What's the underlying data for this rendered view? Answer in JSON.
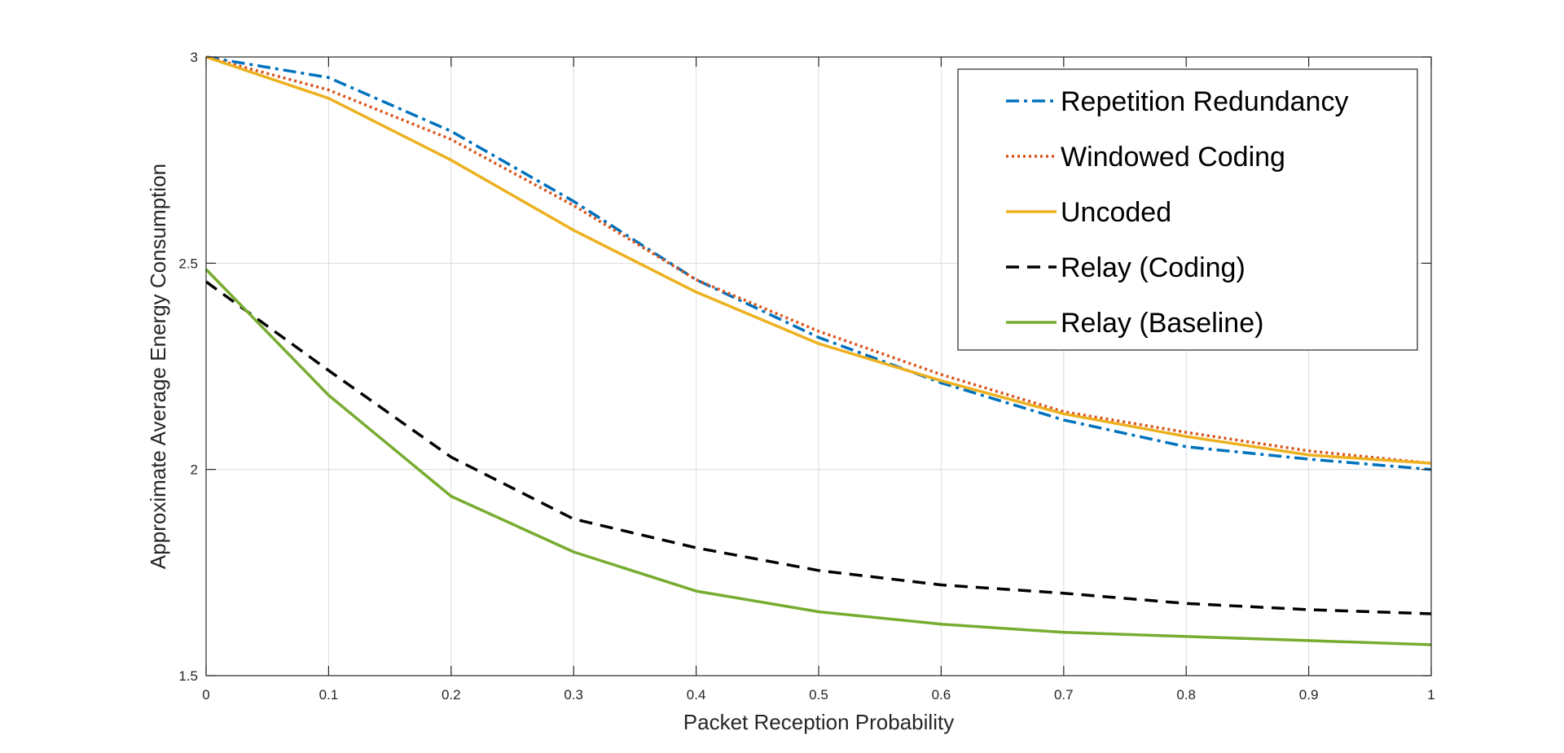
{
  "chart_data": {
    "type": "line",
    "title": "",
    "xlabel": "Packet Reception Probability",
    "ylabel": "Approximate Average Energy Consumption",
    "xlim": [
      0,
      1
    ],
    "ylim": [
      1.5,
      3
    ],
    "x_ticks": [
      "0",
      "0.1",
      "0.2",
      "0.3",
      "0.4",
      "0.5",
      "0.6",
      "0.7",
      "0.8",
      "0.9",
      "1"
    ],
    "y_ticks": [
      "1.5",
      "2",
      "2.5",
      "3"
    ],
    "grid": true,
    "legend_position": "top-right",
    "x": [
      0,
      0.1,
      0.2,
      0.3,
      0.4,
      0.5,
      0.6,
      0.7,
      0.8,
      0.9,
      1
    ],
    "series": [
      {
        "name": "Repetition Redundancy",
        "color": "#0072BD",
        "style": "dash-dot",
        "values": [
          3.0,
          2.95,
          2.82,
          2.65,
          2.46,
          2.32,
          2.21,
          2.12,
          2.055,
          2.025,
          2.0
        ]
      },
      {
        "name": "Windowed Coding",
        "color": "#D95319",
        "style": "dotted",
        "values": [
          3.0,
          2.92,
          2.8,
          2.64,
          2.46,
          2.335,
          2.23,
          2.14,
          2.09,
          2.045,
          2.015
        ]
      },
      {
        "name": "Uncoded",
        "color": "#EDB120",
        "style": "solid",
        "values": [
          3.0,
          2.9,
          2.75,
          2.58,
          2.43,
          2.305,
          2.215,
          2.135,
          2.08,
          2.035,
          2.015
        ]
      },
      {
        "name": "Relay (Coding)",
        "color": "#000000",
        "style": "dashed",
        "values": [
          2.455,
          2.24,
          2.03,
          1.88,
          1.81,
          1.755,
          1.72,
          1.7,
          1.675,
          1.66,
          1.65
        ]
      },
      {
        "name": "Relay (Baseline)",
        "color": "#77AC30",
        "style": "solid",
        "values": [
          2.485,
          2.18,
          1.935,
          1.8,
          1.705,
          1.655,
          1.625,
          1.605,
          1.595,
          1.585,
          1.575
        ]
      }
    ]
  }
}
